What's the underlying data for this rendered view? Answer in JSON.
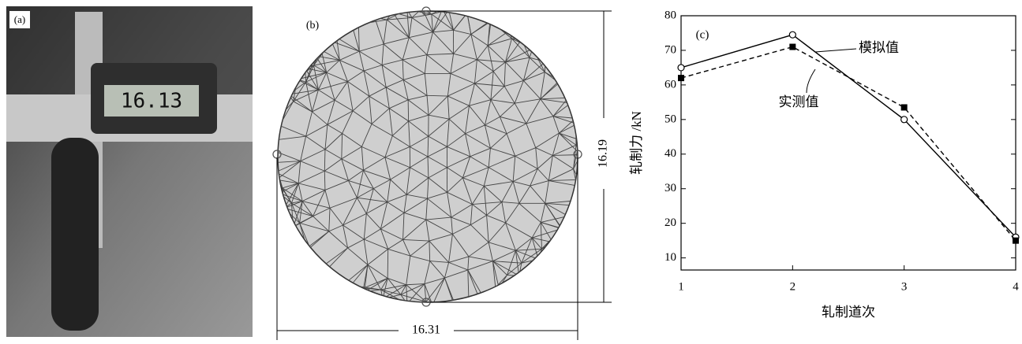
{
  "panel_a": {
    "label": "(a)",
    "display": "16.13"
  },
  "panel_b": {
    "label": "(b)",
    "height": "16.19",
    "width": "16.31"
  },
  "chart_data": {
    "type": "line",
    "panel_label": "(c)",
    "x_label": "轧制道次",
    "y_label": "轧制力 /kN",
    "x": [
      1,
      2,
      3,
      4
    ],
    "series": [
      {
        "name": "模拟值",
        "color": "#000000",
        "values": [
          65,
          74.5,
          50,
          16
        ]
      },
      {
        "name": "实测值",
        "color": "#000000",
        "values": [
          62,
          71,
          53.5,
          15
        ]
      }
    ],
    "xlim": [
      1,
      4
    ],
    "xticks": [
      1,
      2,
      3,
      4
    ],
    "ylim": [
      6.5,
      80
    ],
    "yticks": [
      10,
      20,
      30,
      40,
      50,
      60,
      70,
      80
    ]
  }
}
